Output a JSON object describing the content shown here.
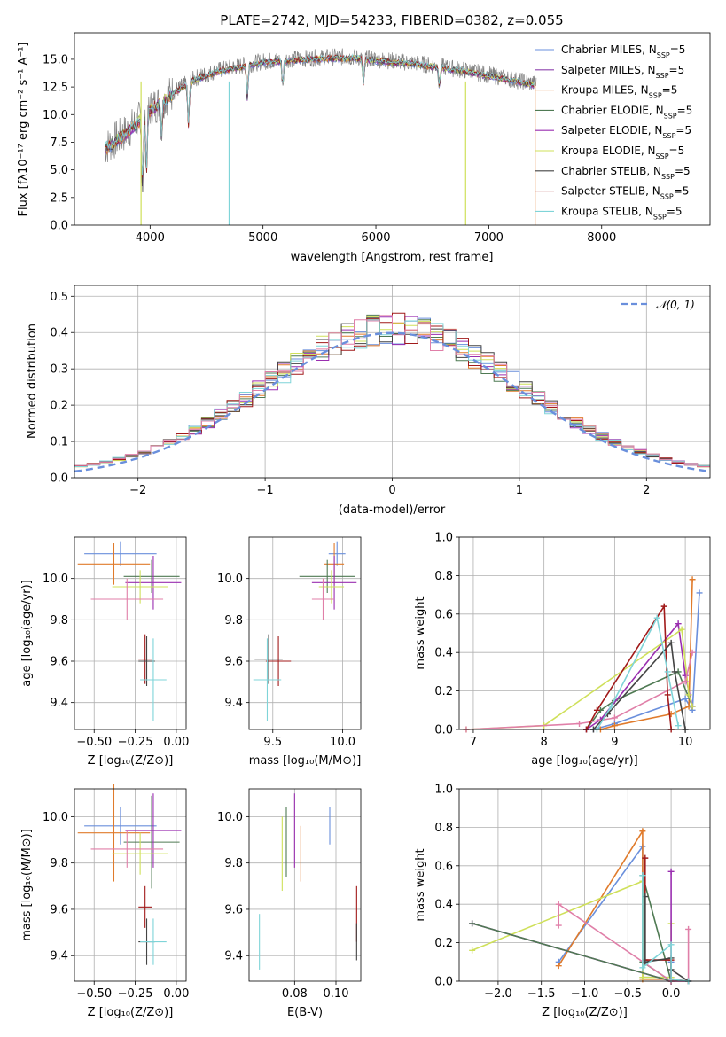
{
  "colors": [
    "#6a8fdc",
    "#e07b2c",
    "#e07b2c",
    "#4f7a53",
    "#9a2fb0",
    "#cfe05a",
    "#444444",
    "#a11a1a",
    "#7fd4d8",
    "#e07fa8"
  ],
  "chart_data": [
    {
      "type": "line",
      "title": "PLATE=2742, MJD=54233, FIBERID=0382, z=0.055",
      "xlabel": "wavelength [Angstrom, rest frame]",
      "ylabel": "Flux [fλ10⁻¹⁷ erg cm⁻² s⁻¹ A⁻¹]",
      "xlim": [
        3330,
        8960
      ],
      "ylim": [
        0,
        17.4
      ],
      "xticks": [
        4000,
        5000,
        6000,
        7000,
        8000
      ],
      "yticks": [
        0.0,
        2.5,
        5.0,
        7.5,
        10.0,
        12.5,
        15.0
      ],
      "xtick_labels": [
        "4000",
        "5000",
        "6000",
        "7000",
        "8000"
      ],
      "ytick_labels": [
        "0.0",
        "2.5",
        "5.0",
        "7.5",
        "10.0",
        "12.5",
        "15.0"
      ],
      "grid": false,
      "legend_position": "top-right",
      "legend": [
        {
          "name": "Chabrier MILES, N",
          "sub": "SSP",
          "tail": "=5",
          "color": "#6a8fdc"
        },
        {
          "name": "Salpeter MILES, N",
          "sub": "SSP",
          "tail": "=5",
          "color": "#8e44ad"
        },
        {
          "name": "Kroupa MILES, N",
          "sub": "SSP",
          "tail": "=5",
          "color": "#e07b2c"
        },
        {
          "name": "Chabrier ELODIE, N",
          "sub": "SSP",
          "tail": "=5",
          "color": "#4f7a53"
        },
        {
          "name": "Salpeter ELODIE, N",
          "sub": "SSP",
          "tail": "=5",
          "color": "#9a2fb0"
        },
        {
          "name": "Kroupa ELODIE, N",
          "sub": "SSP",
          "tail": "=5",
          "color": "#cfe05a"
        },
        {
          "name": "Chabrier STELIB, N",
          "sub": "SSP",
          "tail": "=5",
          "color": "#444444"
        },
        {
          "name": "Salpeter STELIB, N",
          "sub": "SSP",
          "tail": "=5",
          "color": "#a11a1a"
        },
        {
          "name": "Kroupa STELIB, N",
          "sub": "SSP",
          "tail": "=5",
          "color": "#7fd4d8"
        }
      ],
      "continuum": {
        "x": [
          3600,
          3800,
          4000,
          4200,
          4400,
          4600,
          4800,
          5000,
          5200,
          5400,
          5600,
          5800,
          6000,
          6200,
          6400,
          6600,
          6800,
          7000,
          7200,
          7400
        ],
        "y": [
          7.0,
          8.5,
          10.5,
          12.0,
          13.3,
          14.0,
          14.4,
          14.8,
          15.0,
          15.1,
          15.2,
          15.2,
          15.0,
          14.8,
          14.6,
          14.3,
          14.0,
          13.6,
          13.2,
          12.8
        ]
      }
    },
    {
      "type": "histogram",
      "xlabel": "(data-model)/error",
      "ylabel": "Normed distribution",
      "xlim": [
        -2.5,
        2.5
      ],
      "ylim": [
        0,
        0.53
      ],
      "xticks": [
        -2,
        -1,
        0,
        1,
        2
      ],
      "xtick_labels": [
        "−2",
        "−1",
        "0",
        "1",
        "2"
      ],
      "yticks": [
        0.0,
        0.1,
        0.2,
        0.3,
        0.4,
        0.5
      ],
      "ytick_labels": [
        "0.0",
        "0.1",
        "0.2",
        "0.3",
        "0.4",
        "0.5"
      ],
      "grid": true,
      "legend": "𝒩(0, 1)",
      "bin_width": 0.1
    },
    {
      "type": "scatter",
      "xlabel": "Z [log₁₀(Z/Z⊙)]",
      "ylabel": "age  [log₁₀(age/yr)]",
      "xlim": [
        -0.62,
        0.06
      ],
      "ylim": [
        9.27,
        10.2
      ],
      "xticks": [
        -0.5,
        -0.25,
        0.0
      ],
      "xtick_labels": [
        "−0.50",
        "−0.25",
        "0.00"
      ],
      "yticks": [
        9.4,
        9.6,
        9.8,
        10.0
      ],
      "ytick_labels": [
        "9.4",
        "9.6",
        "9.8",
        "10.0"
      ],
      "points": [
        {
          "x": -0.34,
          "y": 10.12,
          "xerr": 0.22,
          "yerr": 0.06,
          "color": "#6a8fdc"
        },
        {
          "x": -0.38,
          "y": 10.07,
          "xerr": 0.22,
          "yerr": 0.1,
          "color": "#e07b2c"
        },
        {
          "x": -0.15,
          "y": 10.01,
          "xerr": 0.17,
          "yerr": 0.08,
          "color": "#4f7a53"
        },
        {
          "x": -0.14,
          "y": 9.98,
          "xerr": 0.17,
          "yerr": 0.13,
          "color": "#9a2fb0"
        },
        {
          "x": -0.22,
          "y": 9.96,
          "xerr": 0.17,
          "yerr": 0.08,
          "color": "#cfe05a"
        },
        {
          "x": -0.3,
          "y": 9.9,
          "xerr": 0.22,
          "yerr": 0.1,
          "color": "#e07fa8"
        },
        {
          "x": -0.19,
          "y": 9.61,
          "xerr": 0.04,
          "yerr": 0.12,
          "color": "#a11a1a"
        },
        {
          "x": -0.18,
          "y": 9.6,
          "xerr": 0.05,
          "yerr": 0.12,
          "color": "#444444"
        },
        {
          "x": -0.14,
          "y": 9.51,
          "xerr": 0.08,
          "yerr": 0.2,
          "color": "#7fd4d8"
        }
      ]
    },
    {
      "type": "scatter",
      "xlabel": "mass [log₁₀(M/M⊙)]",
      "ylabel": "",
      "xlim": [
        9.33,
        10.13
      ],
      "ylim": [
        9.27,
        10.2
      ],
      "xticks": [
        9.5,
        10.0
      ],
      "xtick_labels": [
        "9.5",
        "10.0"
      ],
      "yticks": [
        9.4,
        9.6,
        9.8,
        10.0
      ],
      "ytick_labels": [
        "9.4",
        "9.6",
        "9.8",
        "10.0"
      ],
      "points": [
        {
          "x": 9.96,
          "y": 10.12,
          "xerr": 0.06,
          "yerr": 0.06,
          "color": "#6a8fdc"
        },
        {
          "x": 9.94,
          "y": 10.07,
          "xerr": 0.07,
          "yerr": 0.1,
          "color": "#e07b2c"
        },
        {
          "x": 9.89,
          "y": 10.01,
          "xerr": 0.2,
          "yerr": 0.08,
          "color": "#4f7a53"
        },
        {
          "x": 9.94,
          "y": 9.98,
          "xerr": 0.16,
          "yerr": 0.13,
          "color": "#9a2fb0"
        },
        {
          "x": 9.92,
          "y": 9.96,
          "xerr": 0.09,
          "yerr": 0.08,
          "color": "#cfe05a"
        },
        {
          "x": 9.86,
          "y": 9.9,
          "xerr": 0.08,
          "yerr": 0.1,
          "color": "#e07fa8"
        },
        {
          "x": 9.54,
          "y": 9.6,
          "xerr": 0.09,
          "yerr": 0.12,
          "color": "#a11a1a"
        },
        {
          "x": 9.47,
          "y": 9.61,
          "xerr": 0.1,
          "yerr": 0.12,
          "color": "#444444"
        },
        {
          "x": 9.46,
          "y": 9.51,
          "xerr": 0.1,
          "yerr": 0.2,
          "color": "#7fd4d8"
        }
      ]
    },
    {
      "type": "line",
      "xlabel": "age  [log₁₀(age/yr)]",
      "ylabel": "mass weight",
      "xlim": [
        6.8,
        10.35
      ],
      "ylim": [
        0,
        1.0
      ],
      "xticks": [
        7,
        8,
        9,
        10
      ],
      "xtick_labels": [
        "7",
        "8",
        "9",
        "10"
      ],
      "yticks": [
        0.0,
        0.2,
        0.4,
        0.6,
        0.8,
        1.0
      ],
      "ytick_labels": [
        "0.0",
        "0.2",
        "0.4",
        "0.6",
        "0.8",
        "1.0"
      ],
      "grid": true,
      "series": [
        {
          "color": "#6a8fdc",
          "x": [
            8.7,
            9.0,
            10.0,
            10.1,
            10.2
          ],
          "y": [
            0.0,
            0.03,
            0.16,
            0.1,
            0.71
          ]
        },
        {
          "color": "#e07b2c",
          "x": [
            8.8,
            9.0,
            9.8,
            10.05,
            10.1
          ],
          "y": [
            0.0,
            0.02,
            0.08,
            0.12,
            0.78
          ]
        },
        {
          "color": "#4f7a53",
          "x": [
            8.6,
            8.8,
            9.0,
            9.9,
            10.1
          ],
          "y": [
            0.0,
            0.1,
            0.15,
            0.3,
            0.12
          ]
        },
        {
          "color": "#9a2fb0",
          "x": [
            8.6,
            8.8,
            9.9,
            10.0,
            10.1
          ],
          "y": [
            0.0,
            0.05,
            0.55,
            0.28,
            0.12
          ]
        },
        {
          "color": "#cfe05a",
          "x": [
            6.9,
            8.0,
            9.95,
            10.05,
            10.1
          ],
          "y": [
            0.0,
            0.02,
            0.52,
            0.18,
            0.12
          ]
        },
        {
          "color": "#e07fa8",
          "x": [
            6.9,
            8.5,
            9.0,
            10.0,
            10.1
          ],
          "y": [
            0.0,
            0.03,
            0.06,
            0.25,
            0.4
          ]
        },
        {
          "color": "#a11a1a",
          "x": [
            8.6,
            8.75,
            9.7,
            9.75,
            9.8
          ],
          "y": [
            0.0,
            0.1,
            0.64,
            0.18,
            0.0
          ]
        },
        {
          "color": "#444444",
          "x": [
            8.7,
            8.9,
            9.8,
            9.85,
            10.0
          ],
          "y": [
            0.0,
            0.08,
            0.45,
            0.3,
            0.0
          ]
        },
        {
          "color": "#7fd4d8",
          "x": [
            8.75,
            8.95,
            9.6,
            9.75,
            9.9
          ],
          "y": [
            0.0,
            0.12,
            0.58,
            0.3,
            0.02
          ]
        }
      ]
    },
    {
      "type": "scatter",
      "xlabel": "Z [log₁₀(Z/Z⊙)]",
      "ylabel": "mass [log₁₀(M/M⊙)]",
      "xlim": [
        -0.62,
        0.06
      ],
      "ylim": [
        9.29,
        10.12
      ],
      "xticks": [
        -0.5,
        -0.25,
        0.0
      ],
      "xtick_labels": [
        "−0.50",
        "−0.25",
        "0.00"
      ],
      "yticks": [
        9.4,
        9.6,
        9.8,
        10.0
      ],
      "ytick_labels": [
        "9.4",
        "9.6",
        "9.8",
        "10.0"
      ],
      "points": [
        {
          "x": -0.34,
          "y": 9.96,
          "xerr": 0.22,
          "yerr": 0.08,
          "color": "#6a8fdc"
        },
        {
          "x": -0.38,
          "y": 9.93,
          "xerr": 0.22,
          "yerr": 0.21,
          "color": "#e07b2c"
        },
        {
          "x": -0.15,
          "y": 9.89,
          "xerr": 0.17,
          "yerr": 0.2,
          "color": "#4f7a53"
        },
        {
          "x": -0.14,
          "y": 9.94,
          "xerr": 0.17,
          "yerr": 0.16,
          "color": "#9a2fb0"
        },
        {
          "x": -0.22,
          "y": 9.84,
          "xerr": 0.17,
          "yerr": 0.09,
          "color": "#cfe05a"
        },
        {
          "x": -0.3,
          "y": 9.86,
          "xerr": 0.22,
          "yerr": 0.08,
          "color": "#e07fa8"
        },
        {
          "x": -0.19,
          "y": 9.61,
          "xerr": 0.04,
          "yerr": 0.09,
          "color": "#a11a1a"
        },
        {
          "x": -0.18,
          "y": 9.46,
          "xerr": 0.05,
          "yerr": 0.1,
          "color": "#444444"
        },
        {
          "x": -0.14,
          "y": 9.46,
          "xerr": 0.08,
          "yerr": 0.1,
          "color": "#7fd4d8"
        }
      ]
    },
    {
      "type": "scatter",
      "xlabel": "E(B-V)",
      "ylabel": "",
      "xlim": [
        0.058,
        0.112
      ],
      "ylim": [
        9.29,
        10.12
      ],
      "xticks": [
        0.08,
        0.1
      ],
      "xtick_labels": [
        "0.08",
        "0.10"
      ],
      "yticks": [
        9.4,
        9.6,
        9.8,
        10.0
      ],
      "ytick_labels": [
        "9.4",
        "9.6",
        "9.8",
        "10.0"
      ],
      "points": [
        {
          "x": 0.097,
          "y": 9.96,
          "xerr": 0.0,
          "yerr": 0.08,
          "color": "#6a8fdc"
        },
        {
          "x": 0.083,
          "y": 9.84,
          "xerr": 0.0,
          "yerr": 0.12,
          "color": "#e07b2c"
        },
        {
          "x": 0.076,
          "y": 9.89,
          "xerr": 0.0,
          "yerr": 0.15,
          "color": "#4f7a53"
        },
        {
          "x": 0.08,
          "y": 9.94,
          "xerr": 0.0,
          "yerr": 0.16,
          "color": "#9a2fb0"
        },
        {
          "x": 0.074,
          "y": 9.84,
          "xerr": 0.0,
          "yerr": 0.16,
          "color": "#cfe05a"
        },
        {
          "x": 0.11,
          "y": 9.58,
          "xerr": 0.0,
          "yerr": 0.12,
          "color": "#a11a1a"
        },
        {
          "x": 0.11,
          "y": 9.46,
          "xerr": 0.0,
          "yerr": 0.08,
          "color": "#444444"
        },
        {
          "x": 0.063,
          "y": 9.46,
          "xerr": 0.0,
          "yerr": 0.12,
          "color": "#7fd4d8"
        }
      ]
    },
    {
      "type": "line",
      "xlabel": "Z [log₁₀(Z/Z⊙)]",
      "ylabel": "mass weight",
      "xlim": [
        -2.45,
        0.45
      ],
      "ylim": [
        0,
        1.0
      ],
      "xticks": [
        -2.0,
        -1.5,
        -1.0,
        -0.5,
        0.0
      ],
      "xtick_labels": [
        "−2.0",
        "−1.5",
        "−1.0",
        "−0.5",
        "0.0"
      ],
      "yticks": [
        0.0,
        0.2,
        0.4,
        0.6,
        0.8,
        1.0
      ],
      "ytick_labels": [
        "0.0",
        "0.2",
        "0.4",
        "0.6",
        "0.8",
        "1.0"
      ],
      "grid": true,
      "series": [
        {
          "color": "#6a8fdc",
          "x": [
            -1.3,
            -0.33,
            -0.33,
            0.0,
            0.0
          ],
          "y": [
            0.1,
            0.7,
            0.02,
            0.02,
            0.1
          ]
        },
        {
          "color": "#e07b2c",
          "x": [
            -1.3,
            -0.33,
            -0.33,
            0.0,
            0.2
          ],
          "y": [
            0.08,
            0.78,
            0.01,
            0.01,
            0.0
          ]
        },
        {
          "color": "#cfe05a",
          "x": [
            -2.3,
            -0.33,
            -0.33,
            0.0,
            0.0
          ],
          "y": [
            0.16,
            0.52,
            0.02,
            0.02,
            0.3
          ]
        },
        {
          "color": "#9a2fb0",
          "x": [
            -2.3,
            0.0,
            0.0,
            0.0,
            0.2
          ],
          "y": [
            0.3,
            0.0,
            0.57,
            0.0,
            0.0
          ]
        },
        {
          "color": "#4f7a53",
          "x": [
            -2.3,
            0.0,
            -0.33,
            -0.33,
            0.0
          ],
          "y": [
            0.3,
            0.0,
            0.1,
            0.55,
            0.0
          ]
        },
        {
          "color": "#e07fa8",
          "x": [
            -1.3,
            -1.3,
            0.0,
            0.2,
            0.2
          ],
          "y": [
            0.29,
            0.4,
            0.0,
            0.0,
            0.27
          ]
        },
        {
          "color": "#a11a1a",
          "x": [
            -0.3,
            -0.3,
            0.0,
            0.0,
            0.2
          ],
          "y": [
            0.64,
            0.11,
            0.11,
            0.01,
            0.0
          ]
        },
        {
          "color": "#444444",
          "x": [
            -0.3,
            -0.3,
            0.0,
            0.0,
            0.2
          ],
          "y": [
            0.44,
            0.1,
            0.12,
            0.06,
            0.0
          ]
        },
        {
          "color": "#7fd4d8",
          "x": [
            -0.33,
            -0.33,
            0.0,
            0.0,
            0.2
          ],
          "y": [
            0.55,
            0.07,
            0.19,
            0.01,
            0.0
          ]
        }
      ]
    }
  ]
}
